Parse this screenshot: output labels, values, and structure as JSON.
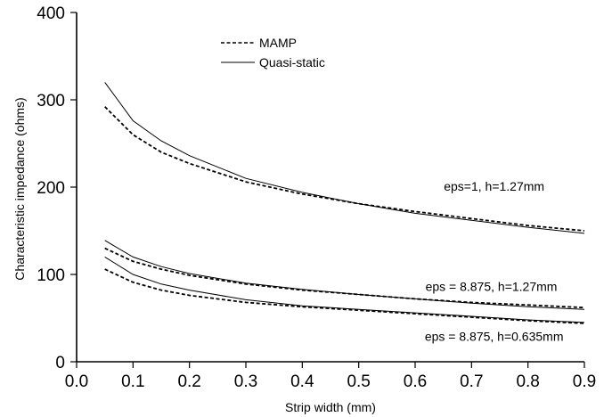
{
  "chart_data": {
    "type": "line",
    "xlabel": "Strip width (mm)",
    "ylabel": "Characteristic impedance (ohms)",
    "xlim": [
      0.0,
      0.9
    ],
    "ylim": [
      0,
      400
    ],
    "x_ticks": [
      "0.0",
      "0.1",
      "0.2",
      "0.3",
      "0.4",
      "0.5",
      "0.6",
      "0.7",
      "0.8",
      "0.9"
    ],
    "y_ticks": [
      "0",
      "100",
      "200",
      "300",
      "400"
    ],
    "x_tick_values": [
      0.0,
      0.1,
      0.2,
      0.3,
      0.4,
      0.5,
      0.6,
      0.7,
      0.8,
      0.9
    ],
    "y_tick_values": [
      0,
      100,
      200,
      300,
      400
    ],
    "grid": false,
    "legend_position": "top-center",
    "legend": [
      {
        "label": "MAMP",
        "style": "dashed"
      },
      {
        "label": "Quasi-static",
        "style": "solid"
      }
    ],
    "series": [
      {
        "group": "eps=1, h=1.27mm",
        "style": "dashed",
        "x": [
          0.05,
          0.1,
          0.15,
          0.2,
          0.3,
          0.4,
          0.5,
          0.6,
          0.7,
          0.8,
          0.9
        ],
        "y": [
          292,
          260,
          240,
          227,
          206,
          192,
          181,
          172,
          164,
          156,
          150
        ]
      },
      {
        "group": "eps=1, h=1.27mm",
        "style": "solid",
        "x": [
          0.05,
          0.1,
          0.15,
          0.2,
          0.3,
          0.4,
          0.5,
          0.6,
          0.7,
          0.8,
          0.9
        ],
        "y": [
          320,
          276,
          253,
          236,
          210,
          194,
          181,
          170,
          162,
          154,
          147
        ]
      },
      {
        "group": "eps = 8.875, h=1.27mm",
        "style": "dashed",
        "x": [
          0.05,
          0.1,
          0.15,
          0.2,
          0.3,
          0.4,
          0.5,
          0.6,
          0.7,
          0.8,
          0.9
        ],
        "y": [
          130,
          115,
          106,
          99,
          89,
          82,
          77,
          72,
          68,
          65,
          62
        ]
      },
      {
        "group": "eps = 8.875, h=1.27mm",
        "style": "solid",
        "x": [
          0.05,
          0.1,
          0.15,
          0.2,
          0.3,
          0.4,
          0.5,
          0.6,
          0.7,
          0.8,
          0.9
        ],
        "y": [
          139,
          120,
          109,
          101,
          90,
          83,
          77,
          72,
          67,
          63,
          60
        ]
      },
      {
        "group": "eps = 8.875, h=0.635mm",
        "style": "dashed",
        "x": [
          0.05,
          0.1,
          0.15,
          0.2,
          0.3,
          0.4,
          0.5,
          0.6,
          0.7,
          0.8,
          0.9
        ],
        "y": [
          106,
          91,
          82,
          76,
          68,
          63,
          59,
          55,
          51,
          47,
          44
        ]
      },
      {
        "group": "eps = 8.875, h=0.635mm",
        "style": "solid",
        "x": [
          0.05,
          0.1,
          0.15,
          0.2,
          0.3,
          0.4,
          0.5,
          0.6,
          0.7,
          0.8,
          0.9
        ],
        "y": [
          120,
          100,
          89,
          82,
          71,
          64,
          60,
          56,
          52,
          48,
          45
        ]
      }
    ],
    "annotations": [
      {
        "text": "eps=1, h=1.27mm",
        "x": 0.74,
        "y": 196
      },
      {
        "text": "eps = 8.875, h=1.27mm",
        "x": 0.735,
        "y": 81
      },
      {
        "text": "eps = 8.875, h=0.635mm",
        "x": 0.74,
        "y": 24
      }
    ]
  }
}
